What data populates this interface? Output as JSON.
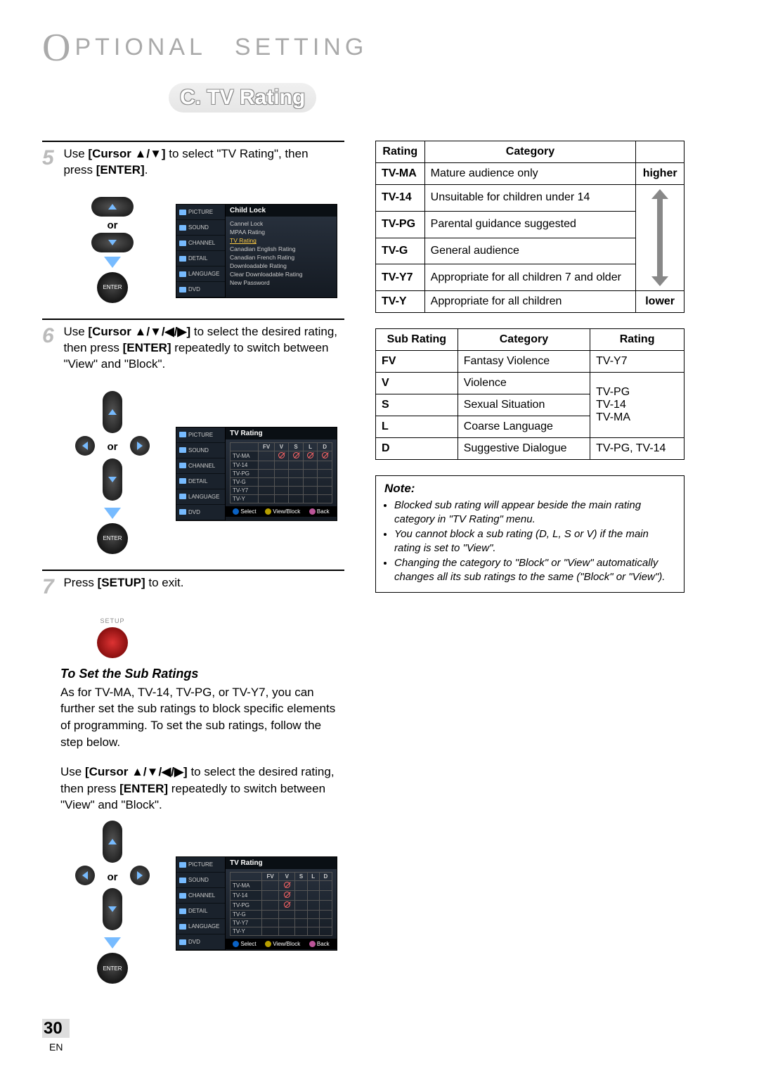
{
  "header": {
    "title_letter": "O",
    "title_rest": "PTIONAL SETTING",
    "section": "C. TV Rating"
  },
  "steps": {
    "s5": {
      "num": "5",
      "text_pre": "Use ",
      "bold1": "[Cursor ▲/▼]",
      "text_mid": " to select \"TV Rating\", then press ",
      "bold2": "[ENTER]",
      "text_post": "."
    },
    "s6": {
      "num": "6",
      "text_pre": "Use ",
      "bold1": "[Cursor ▲/▼/◀/▶]",
      "text_mid": " to select the desired rating, then press ",
      "bold2": "[ENTER]",
      "text_post": " repeatedly to switch between \"View\" and \"Block\"."
    },
    "s7": {
      "num": "7",
      "text_pre": "Press ",
      "bold1": "[SETUP]",
      "text_post": " to exit."
    }
  },
  "remote": {
    "or": "or",
    "enter": "ENTER",
    "setup": "SETUP"
  },
  "osd_tabs": [
    "PICTURE",
    "SOUND",
    "CHANNEL",
    "DETAIL",
    "LANGUAGE",
    "DVD"
  ],
  "osd1": {
    "title": "Child Lock",
    "items": [
      "Cannel Lock",
      "MPAA Rating",
      "TV Rating",
      "Canadian English Rating",
      "Canadian French Rating",
      "Downloadable Rating",
      "Clear Downloadable Rating",
      "New Password"
    ],
    "highlight_index": 2
  },
  "osd2": {
    "title": "TV Rating",
    "cols": [
      "FV",
      "V",
      "S",
      "L",
      "D"
    ],
    "rows": [
      "TV-MA",
      "TV-14",
      "TV-PG",
      "TV-G",
      "TV-Y7",
      "TV-Y"
    ],
    "blocks": {
      "TV-MA": [
        false,
        true,
        true,
        true,
        true
      ]
    },
    "foot": {
      "select": "Select",
      "vb": "View/Block",
      "back": "Back"
    }
  },
  "osd3": {
    "title": "TV Rating",
    "cols": [
      "FV",
      "V",
      "S",
      "L",
      "D"
    ],
    "rows": [
      "TV-MA",
      "TV-14",
      "TV-PG",
      "TV-G",
      "TV-Y7",
      "TV-Y"
    ],
    "blocks": {
      "TV-MA": [
        false,
        true,
        false,
        false,
        false
      ],
      "TV-14": [
        false,
        true,
        false,
        false,
        false
      ],
      "TV-PG": [
        false,
        true,
        false,
        false,
        false
      ]
    },
    "foot": {
      "select": "Select",
      "vb": "View/Block",
      "back": "Back"
    }
  },
  "sub_ratings": {
    "heading": "To Set the Sub Ratings",
    "para1": "As for TV-MA, TV-14, TV-PG, or TV-Y7, you can further set the sub ratings to block specific elements of programming. To set the sub ratings, follow the step below.",
    "para2_pre": "Use ",
    "para2_b1": "[Cursor ▲/▼/◀/▶]",
    "para2_mid": " to select the desired rating, then press ",
    "para2_b2": "[ENTER]",
    "para2_post": " repeatedly to switch between \"View\" and \"Block\"."
  },
  "table1": {
    "headers": [
      "Rating",
      "Category",
      ""
    ],
    "rows": [
      {
        "code": "TV-MA",
        "cat": "Mature audience only",
        "arrow": "higher"
      },
      {
        "code": "TV-14",
        "cat": "Unsuitable for children under 14"
      },
      {
        "code": "TV-PG",
        "cat": "Parental guidance suggested"
      },
      {
        "code": "TV-G",
        "cat": "General audience"
      },
      {
        "code": "TV-Y7",
        "cat": "Appropriate for all children 7 and older"
      },
      {
        "code": "TV-Y",
        "cat": "Appropriate for all children",
        "arrow": "lower"
      }
    ]
  },
  "table2": {
    "headers": [
      "Sub Rating",
      "Category",
      "Rating"
    ],
    "rows": [
      {
        "code": "FV",
        "cat": "Fantasy Violence",
        "rating": "TV-Y7"
      },
      {
        "code": "V",
        "cat": "Violence",
        "rating": "TV-PG"
      },
      {
        "code": "S",
        "cat": "Sexual Situation",
        "rating": "TV-14"
      },
      {
        "code": "L",
        "cat": "Coarse Language",
        "rating": "TV-MA"
      },
      {
        "code": "D",
        "cat": "Suggestive Dialogue",
        "rating": "TV-PG, TV-14"
      }
    ]
  },
  "note": {
    "head": "Note:",
    "items": [
      "Blocked sub rating will appear beside the main rating category in \"TV Rating\" menu.",
      "You cannot block a sub rating (D, L, S or V) if the main rating is set to \"View\".",
      "Changing the category to \"Block\" or \"View\" automatically changes all its sub ratings to the same (\"Block\" or \"View\")."
    ]
  },
  "footer": {
    "page": "30",
    "lang": "EN"
  },
  "colors": {
    "accent": "#7bd4ff",
    "grey": "#aaaaaa",
    "osd_bg": "#1a222c"
  }
}
